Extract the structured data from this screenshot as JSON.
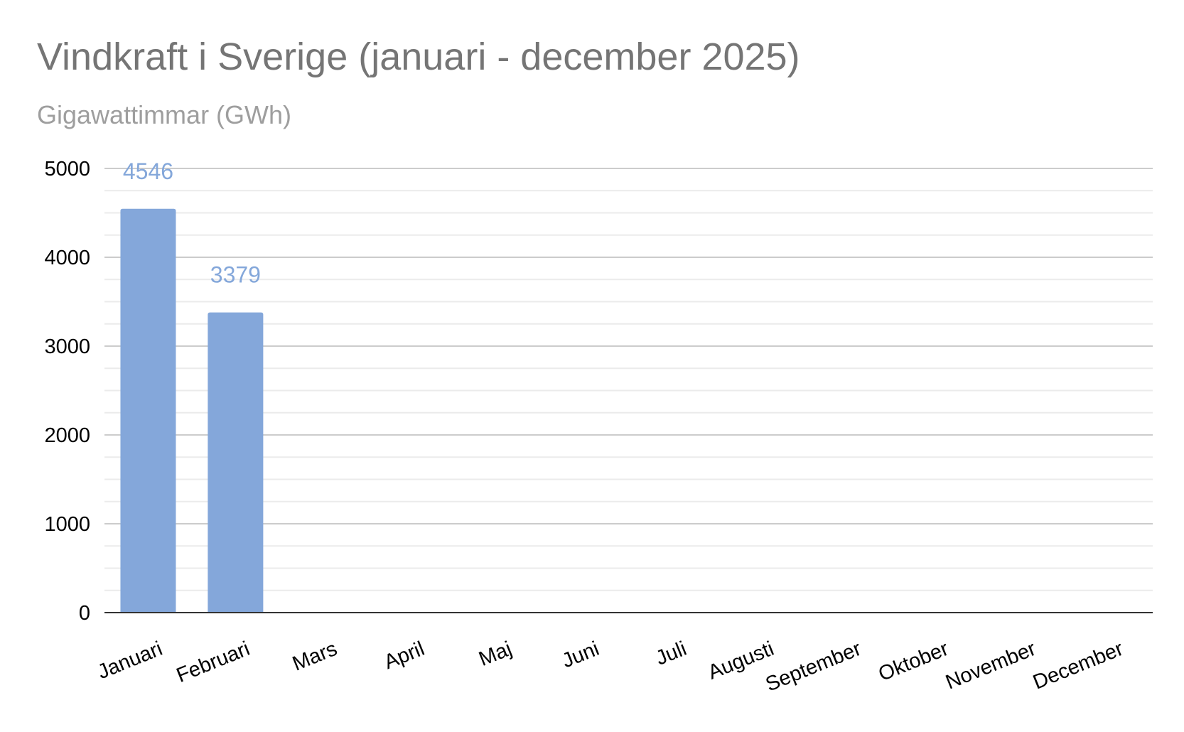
{
  "chart_data": {
    "type": "bar",
    "title": "Vindkraft i Sverige (januari - december 2025)",
    "subtitle": "Gigawattimmar (GWh)",
    "xlabel": "",
    "ylabel": "",
    "categories": [
      "Januari",
      "Februari",
      "Mars",
      "April",
      "Maj",
      "Juni",
      "Juli",
      "Augusti",
      "September",
      "Oktober",
      "November",
      "December"
    ],
    "values": [
      4546,
      3379,
      null,
      null,
      null,
      null,
      null,
      null,
      null,
      null,
      null,
      null
    ],
    "data_labels": [
      "4546",
      "3379",
      "",
      "",
      "",
      "",
      "",
      "",
      "",
      "",
      "",
      ""
    ],
    "ylim": [
      0,
      5000
    ],
    "yticks": [
      0,
      1000,
      2000,
      3000,
      4000,
      5000
    ],
    "grid": true,
    "legend": "none",
    "bar_color": "#84a7da",
    "label_color": "#84a7da"
  }
}
